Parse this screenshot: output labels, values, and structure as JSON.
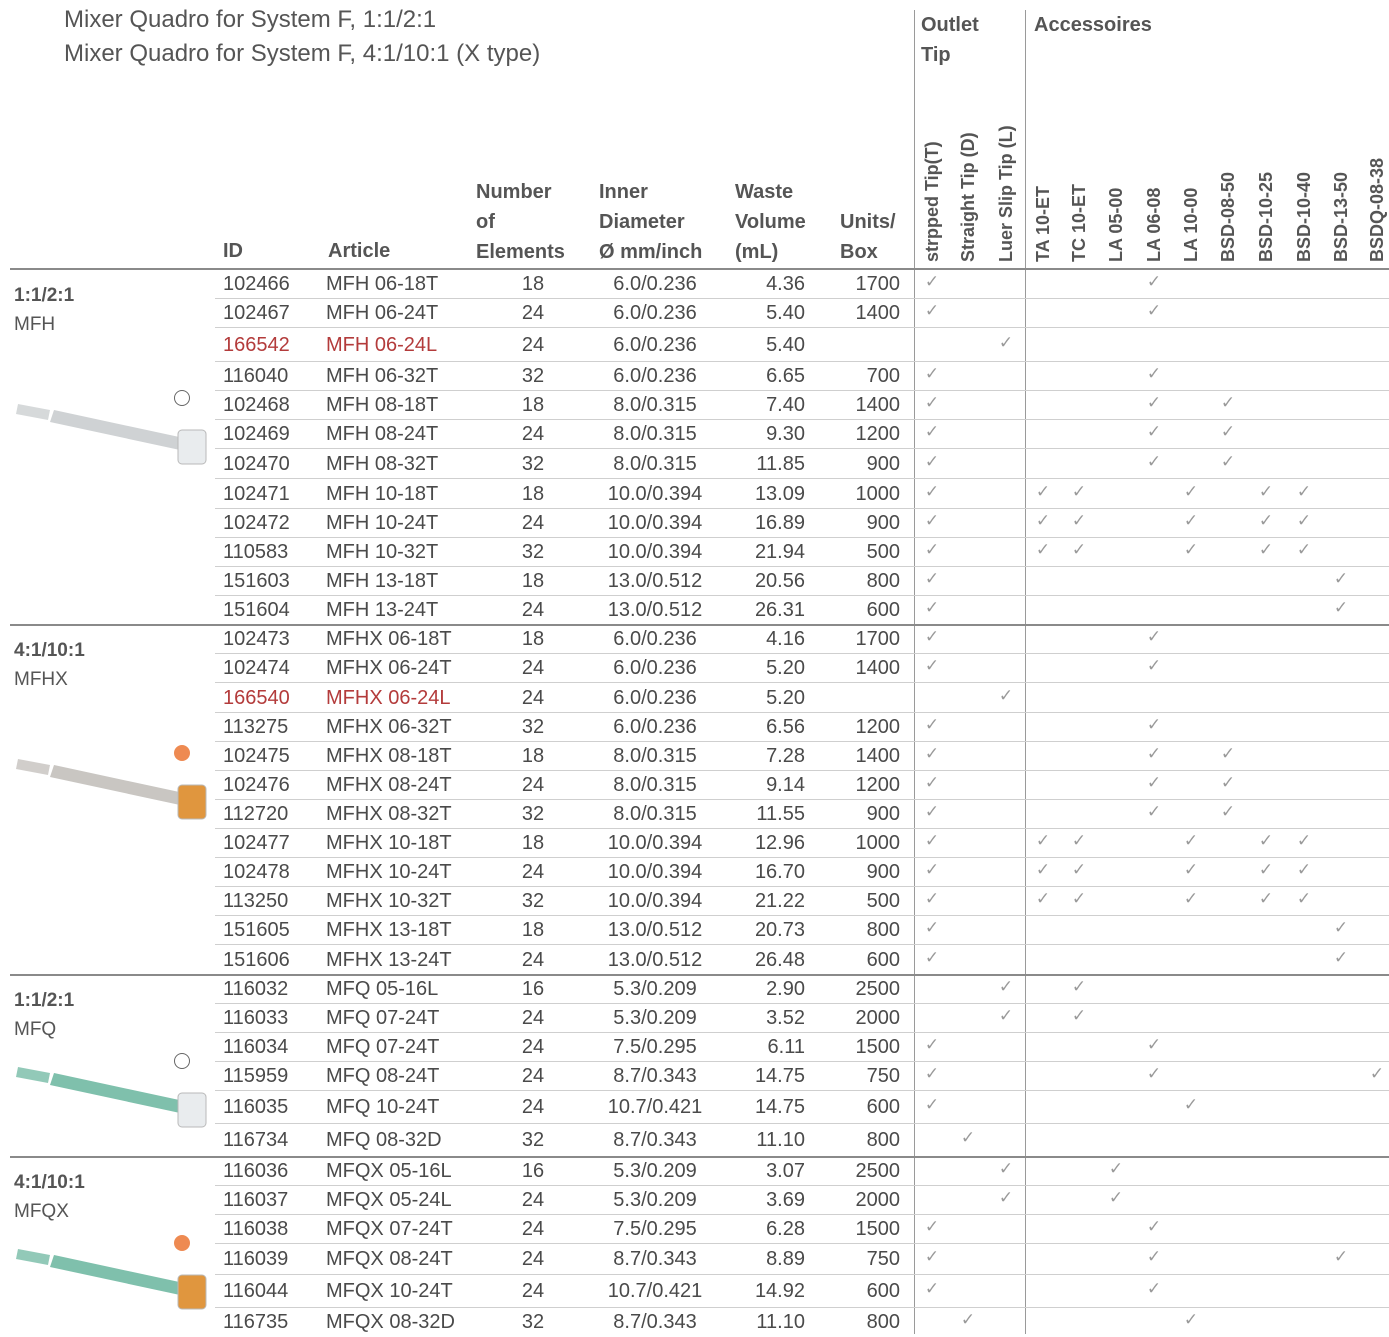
{
  "subtitles": [
    "Mixer  Quadro for System F, 1:1/2:1",
    "Mixer  Quadro for System F,  4:1/10:1 (X type)"
  ],
  "headers": {
    "id": "ID",
    "article": "Article",
    "number": [
      "Number",
      "of",
      "Elements"
    ],
    "diameter": [
      "Inner",
      "Diameter",
      "Ø mm/inch"
    ],
    "waste": [
      "Waste",
      "Volume",
      "(mL)"
    ],
    "units": [
      "Units/",
      "Box"
    ],
    "outlet_group": [
      "Outlet",
      "Tip"
    ],
    "accessories_group": "Accessoires"
  },
  "tip_columns": [
    "strpped Tip(T)",
    "Straight Tip (D)",
    "Luer Slip Tip (L)",
    "TA 10-ET",
    "TC 10-ET",
    "LA 05-00",
    "LA 06-08",
    "LA 10-00",
    "BSD-08-50",
    "BSD-10-25",
    "BSD-10-40",
    "BSD-13-50",
    "BSDQ-08-38"
  ],
  "groups": [
    {
      "ratio": "1:1/2:1",
      "code": "MFH",
      "marker": "open",
      "mixer_color": "#cfd2d4",
      "hub_color": "#e9ecee"
    },
    {
      "ratio": "4:1/10:1",
      "code": "MFHX",
      "marker": "filled",
      "mixer_color": "#c9c6c2",
      "hub_color": "#e0963e"
    },
    {
      "ratio": "1:1/2:1",
      "code": "MFQ",
      "marker": "open",
      "mixer_color": "#7fc0ac",
      "hub_color": "#e9ecee"
    },
    {
      "ratio": "4:1/10:1",
      "code": "MFQX",
      "marker": "filled",
      "mixer_color": "#7fc0ac",
      "hub_color": "#e0963e"
    }
  ],
  "check_symbol": "✓",
  "rows": [
    {
      "id": "102466",
      "article": "MFH 06-18T",
      "elements": "18",
      "diameter": "6.0/0.236",
      "waste": "4.36",
      "units": "1700",
      "tips": [
        0,
        6
      ]
    },
    {
      "id": "102467",
      "article": "MFH 06-24T",
      "elements": "24",
      "diameter": "6.0/0.236",
      "waste": "5.40",
      "units": "1400",
      "tips": [
        0,
        6
      ]
    },
    {
      "id": "166542",
      "article": "MFH 06-24L",
      "elements": "24",
      "diameter": "6.0/0.236",
      "waste": "5.40",
      "units": "",
      "tips": [
        2
      ],
      "red": true
    },
    {
      "id": "116040",
      "article": "MFH 06-32T",
      "elements": "32",
      "diameter": "6.0/0.236",
      "waste": "6.65",
      "units": "700",
      "tips": [
        0,
        6
      ]
    },
    {
      "id": "102468",
      "article": "MFH 08-18T",
      "elements": "18",
      "diameter": "8.0/0.315",
      "waste": "7.40",
      "units": "1400",
      "tips": [
        0,
        6,
        8
      ]
    },
    {
      "id": "102469",
      "article": "MFH 08-24T",
      "elements": "24",
      "diameter": "8.0/0.315",
      "waste": "9.30",
      "units": "1200",
      "tips": [
        0,
        6,
        8
      ]
    },
    {
      "id": "102470",
      "article": "MFH 08-32T",
      "elements": "32",
      "diameter": "8.0/0.315",
      "waste": "11.85",
      "units": "900",
      "tips": [
        0,
        6,
        8
      ]
    },
    {
      "id": "102471",
      "article": "MFH 10-18T",
      "elements": "18",
      "diameter": "10.0/0.394",
      "waste": "13.09",
      "units": "1000",
      "tips": [
        0,
        3,
        4,
        7,
        9,
        10
      ]
    },
    {
      "id": "102472",
      "article": "MFH 10-24T",
      "elements": "24",
      "diameter": "10.0/0.394",
      "waste": "16.89",
      "units": "900",
      "tips": [
        0,
        3,
        4,
        7,
        9,
        10
      ]
    },
    {
      "id": "110583",
      "article": "MFH 10-32T",
      "elements": "32",
      "diameter": "10.0/0.394",
      "waste": "21.94",
      "units": "500",
      "tips": [
        0,
        3,
        4,
        7,
        9,
        10
      ]
    },
    {
      "id": "151603",
      "article": "MFH 13-18T",
      "elements": "18",
      "diameter": "13.0/0.512",
      "waste": "20.56",
      "units": "800",
      "tips": [
        0,
        11
      ]
    },
    {
      "id": "151604",
      "article": "MFH 13-24T",
      "elements": "24",
      "diameter": "13.0/0.512",
      "waste": "26.31",
      "units": "600",
      "tips": [
        0,
        11
      ]
    },
    {
      "id": "102473",
      "article": "MFHX 06-18T",
      "elements": "18",
      "diameter": "6.0/0.236",
      "waste": "4.16",
      "units": "1700",
      "tips": [
        0,
        6
      ]
    },
    {
      "id": "102474",
      "article": "MFHX 06-24T",
      "elements": "24",
      "diameter": "6.0/0.236",
      "waste": "5.20",
      "units": "1400",
      "tips": [
        0,
        6
      ]
    },
    {
      "id": "166540",
      "article": "MFHX 06-24L",
      "elements": "24",
      "diameter": "6.0/0.236",
      "waste": "5.20",
      "units": "",
      "tips": [
        2
      ],
      "red": true
    },
    {
      "id": "113275",
      "article": "MFHX 06-32T",
      "elements": "32",
      "diameter": "6.0/0.236",
      "waste": "6.56",
      "units": "1200",
      "tips": [
        0,
        6
      ]
    },
    {
      "id": "102475",
      "article": "MFHX 08-18T",
      "elements": "18",
      "diameter": "8.0/0.315",
      "waste": "7.28",
      "units": "1400",
      "tips": [
        0,
        6,
        8
      ]
    },
    {
      "id": "102476",
      "article": "MFHX 08-24T",
      "elements": "24",
      "diameter": "8.0/0.315",
      "waste": "9.14",
      "units": "1200",
      "tips": [
        0,
        6,
        8
      ]
    },
    {
      "id": "112720",
      "article": "MFHX 08-32T",
      "elements": "32",
      "diameter": "8.0/0.315",
      "waste": "11.55",
      "units": "900",
      "tips": [
        0,
        6,
        8
      ]
    },
    {
      "id": "102477",
      "article": "MFHX 10-18T",
      "elements": "18",
      "diameter": "10.0/0.394",
      "waste": "12.96",
      "units": "1000",
      "tips": [
        0,
        3,
        4,
        7,
        9,
        10
      ]
    },
    {
      "id": "102478",
      "article": "MFHX 10-24T",
      "elements": "24",
      "diameter": "10.0/0.394",
      "waste": "16.70",
      "units": "900",
      "tips": [
        0,
        3,
        4,
        7,
        9,
        10
      ]
    },
    {
      "id": "113250",
      "article": "MFHX 10-32T",
      "elements": "32",
      "diameter": "10.0/0.394",
      "waste": "21.22",
      "units": "500",
      "tips": [
        0,
        3,
        4,
        7,
        9,
        10
      ]
    },
    {
      "id": "151605",
      "article": "MFHX 13-18T",
      "elements": "18",
      "diameter": "13.0/0.512",
      "waste": "20.73",
      "units": "800",
      "tips": [
        0,
        11
      ]
    },
    {
      "id": "151606",
      "article": "MFHX 13-24T",
      "elements": "24",
      "diameter": "13.0/0.512",
      "waste": "26.48",
      "units": "600",
      "tips": [
        0,
        11
      ]
    },
    {
      "id": "116032",
      "article": "MFQ 05-16L",
      "elements": "16",
      "diameter": "5.3/0.209",
      "waste": "2.90",
      "units": "2500",
      "tips": [
        2,
        4
      ]
    },
    {
      "id": "116033",
      "article": "MFQ 07-24T",
      "elements": "24",
      "diameter": "5.3/0.209",
      "waste": "3.52",
      "units": "2000",
      "tips": [
        2,
        4
      ]
    },
    {
      "id": "116034",
      "article": "MFQ 07-24T",
      "elements": "24",
      "diameter": "7.5/0.295",
      "waste": "6.11",
      "units": "1500",
      "tips": [
        0,
        6
      ]
    },
    {
      "id": "115959",
      "article": "MFQ 08-24T",
      "elements": "24",
      "diameter": "8.7/0.343",
      "waste": "14.75",
      "units": "750",
      "tips": [
        0,
        6,
        12
      ]
    },
    {
      "id": "116035",
      "article": "MFQ 10-24T",
      "elements": "24",
      "diameter": "10.7/0.421",
      "waste": "14.75",
      "units": "600",
      "tips": [
        0,
        7
      ]
    },
    {
      "id": "116734",
      "article": "MFQ 08-32D",
      "elements": "32",
      "diameter": "8.7/0.343",
      "waste": "11.10",
      "units": "800",
      "tips": [
        1
      ]
    },
    {
      "id": "116036",
      "article": "MFQX 05-16L",
      "elements": "16",
      "diameter": "5.3/0.209",
      "waste": "3.07",
      "units": "2500",
      "tips": [
        2,
        5
      ]
    },
    {
      "id": "116037",
      "article": "MFQX 05-24L",
      "elements": "24",
      "diameter": "5.3/0.209",
      "waste": "3.69",
      "units": "2000",
      "tips": [
        2,
        5
      ]
    },
    {
      "id": "116038",
      "article": "MFQX 07-24T",
      "elements": "24",
      "diameter": "7.5/0.295",
      "waste": "6.28",
      "units": "1500",
      "tips": [
        0,
        6
      ]
    },
    {
      "id": "116039",
      "article": "MFQX 08-24T",
      "elements": "24",
      "diameter": "8.7/0.343",
      "waste": "8.89",
      "units": "750",
      "tips": [
        0,
        6,
        11
      ]
    },
    {
      "id": "116044",
      "article": "MFQX 10-24T",
      "elements": "24",
      "diameter": "10.7/0.421",
      "waste": "14.92",
      "units": "600",
      "tips": [
        0,
        6
      ]
    },
    {
      "id": "116735",
      "article": "MFQX 08-32D",
      "elements": "32",
      "diameter": "8.7/0.343",
      "waste": "11.10",
      "units": "800",
      "tips": [
        1,
        7
      ]
    }
  ]
}
